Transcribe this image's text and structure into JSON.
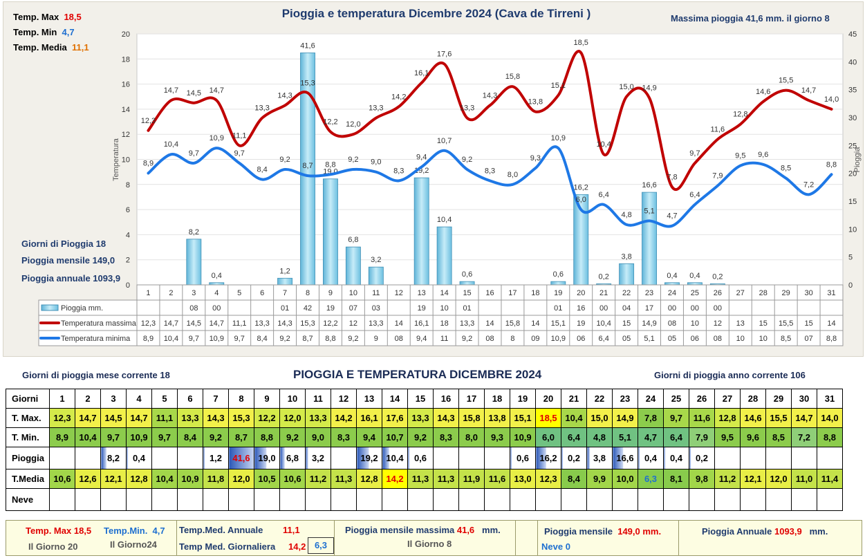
{
  "chart_data": {
    "type": "line",
    "title": "Pioggia e temperatura Dicembre 2024 (Cava de Tirreni )",
    "ylabel": "Temperatura",
    "y2label": "Pioggia",
    "ylim": [
      0,
      20
    ],
    "y2lim": [
      0,
      45
    ],
    "yticks": [
      "0",
      "2",
      "4",
      "6",
      "8",
      "10",
      "12",
      "14",
      "16",
      "18",
      "20"
    ],
    "y2ticks": [
      "0",
      "5",
      "10",
      "15",
      "20",
      "25",
      "30",
      "35",
      "40",
      "45"
    ],
    "categories": [
      "1",
      "2",
      "3",
      "4",
      "5",
      "6",
      "7",
      "8",
      "9",
      "10",
      "11",
      "12",
      "13",
      "14",
      "15",
      "16",
      "17",
      "18",
      "19",
      "20",
      "21",
      "22",
      "23",
      "24",
      "25",
      "26",
      "27",
      "28",
      "29",
      "30",
      "31"
    ],
    "series": [
      {
        "name": "Pioggia mm.",
        "type": "bar",
        "axis": "right",
        "color": "#7ccbe6",
        "values": [
          0,
          0,
          8.2,
          0.4,
          0,
          0,
          1.2,
          41.6,
          19.0,
          6.8,
          3.2,
          0,
          19.2,
          10.4,
          0.6,
          0,
          0,
          0,
          0.6,
          16.2,
          0.2,
          3.8,
          16.6,
          0.4,
          0.4,
          0.2,
          0,
          0,
          0,
          0,
          0
        ],
        "labels": [
          "",
          "",
          "8,2",
          "0,4",
          "",
          "",
          "1,2",
          "41,6",
          "19,0",
          "6,8",
          "3,2",
          "",
          "19,2",
          "10,4",
          "0,6",
          "",
          "",
          "",
          "0,6",
          "16,2",
          "0,2",
          "3,8",
          "16,6",
          "0,4",
          "0,4",
          "0,2",
          "",
          "",
          "",
          "",
          ""
        ]
      },
      {
        "name": "Temperatura massima",
        "type": "line",
        "axis": "left",
        "color": "#c00000",
        "values": [
          12.3,
          14.7,
          14.5,
          14.7,
          11.1,
          13.3,
          14.3,
          15.3,
          12.2,
          12.0,
          13.3,
          14.2,
          16.1,
          17.6,
          13.3,
          14.3,
          15.8,
          13.8,
          15.1,
          18.5,
          10.4,
          15.0,
          14.9,
          7.8,
          9.7,
          11.6,
          12.8,
          14.6,
          15.5,
          14.7,
          14.0
        ],
        "labels": [
          "12,3",
          "14,7",
          "14,5",
          "14,7",
          "11,1",
          "13,3",
          "14,3",
          "15,3",
          "12,2",
          "12,0",
          "13,3",
          "14,2",
          "16,1",
          "17,6",
          "13,3",
          "14,3",
          "15,8",
          "13,8",
          "15,1",
          "18,5",
          "10,4",
          "15,0",
          "14,9",
          "7,8",
          "9,7",
          "11,6",
          "12,8",
          "14,6",
          "15,5",
          "14,7",
          "14,0"
        ]
      },
      {
        "name": "Temperatura minima",
        "type": "line",
        "axis": "left",
        "color": "#1e78e6",
        "values": [
          8.9,
          10.4,
          9.7,
          10.9,
          9.7,
          8.4,
          9.2,
          8.7,
          8.8,
          9.2,
          9.0,
          8.3,
          9.4,
          10.7,
          9.2,
          8.3,
          8.0,
          9.3,
          10.9,
          6.0,
          6.4,
          4.8,
          5.1,
          4.7,
          6.4,
          7.9,
          9.5,
          9.6,
          8.5,
          7.2,
          8.8
        ],
        "labels": [
          "8,9",
          "10,4",
          "9,7",
          "10,9",
          "9,7",
          "8,4",
          "9,2",
          "8,7",
          "8,8",
          "9,2",
          "9,0",
          "8,3",
          "9,4",
          "10,7",
          "9,2",
          "8,3",
          "8,0",
          "9,3",
          "10,9",
          "6,0",
          "6,4",
          "4,8",
          "5,1",
          "4,7",
          "6,4",
          "7,9",
          "9,5",
          "9,6",
          "8,5",
          "7,2",
          "8,8"
        ]
      }
    ],
    "table_rows": [
      {
        "name": "Pioggia mm.",
        "cells": [
          "",
          "",
          "08",
          "00",
          "",
          "",
          "01",
          "42",
          "19",
          "07",
          "03",
          "",
          "19",
          "10",
          "01",
          "",
          "",
          "",
          "01",
          "16",
          "00",
          "04",
          "17",
          "00",
          "00",
          "00",
          "",
          "",
          "",
          "",
          ""
        ]
      },
      {
        "name": "Temperatura massima",
        "cells": [
          "12,3",
          "14,7",
          "14,5",
          "14,7",
          "11,1",
          "13,3",
          "14,3",
          "15,3",
          "12,2",
          "12",
          "13,3",
          "14",
          "16,1",
          "18",
          "13,3",
          "14",
          "15,8",
          "14",
          "15,1",
          "19",
          "10,4",
          "15",
          "14,9",
          "08",
          "10",
          "12",
          "13",
          "15",
          "15,5",
          "15",
          "14"
        ]
      },
      {
        "name": "Temperatura minima",
        "cells": [
          "8,9",
          "10,4",
          "9,7",
          "10,9",
          "9,7",
          "8,4",
          "9,2",
          "8,7",
          "8,8",
          "9,2",
          "9",
          "08",
          "9,4",
          "11",
          "9,2",
          "08",
          "8",
          "09",
          "10,9",
          "06",
          "6,4",
          "05",
          "5,1",
          "05",
          "06",
          "08",
          "10",
          "10",
          "8,5",
          "07",
          "8,8"
        ]
      }
    ],
    "stats": {
      "tmax_label": "Temp. Max",
      "tmax_value": "18,5",
      "tmin_label": "Temp. Min",
      "tmin_value": "4,7",
      "tmed_label": "Temp. Media",
      "tmed_value": "11,1",
      "max_rain": "Massima pioggia  41,6 mm. il giorno  8",
      "rain_days": "Giorni di Pioggia  18",
      "rain_month": "Pioggia mensile  149,0",
      "rain_year": "Pioggia annuale  1093,9"
    },
    "colors": {
      "tmax": "#c00000",
      "tmin": "#1e78e6",
      "rain": "#7ccbe6",
      "tmedia": "#e07000"
    }
  },
  "table": {
    "left_info": "Giorni di pioggia mese corrente   18",
    "title": "PIOGGIA E TEMPERATURA DICEMBRE 2024",
    "right_info": "Giorni di pioggia anno corrente   106",
    "row_labels": [
      "Giorni",
      "T. Max.",
      "T. Min.",
      "Pioggia",
      "T.Media",
      "Neve"
    ],
    "days": [
      "1",
      "2",
      "3",
      "4",
      "5",
      "6",
      "7",
      "8",
      "9",
      "10",
      "11",
      "12",
      "13",
      "14",
      "15",
      "16",
      "17",
      "18",
      "19",
      "20",
      "21",
      "22",
      "23",
      "24",
      "25",
      "26",
      "27",
      "28",
      "29",
      "30",
      "31"
    ],
    "tmax": [
      "12,3",
      "14,7",
      "14,5",
      "14,7",
      "11,1",
      "13,3",
      "14,3",
      "15,3",
      "12,2",
      "12,0",
      "13,3",
      "14,2",
      "16,1",
      "17,6",
      "13,3",
      "14,3",
      "15,8",
      "13,8",
      "15,1",
      "18,5",
      "10,4",
      "15,0",
      "14,9",
      "7,8",
      "9,7",
      "11,6",
      "12,8",
      "14,6",
      "15,5",
      "14,7",
      "14,0"
    ],
    "tmin": [
      "8,9",
      "10,4",
      "9,7",
      "10,9",
      "9,7",
      "8,4",
      "9,2",
      "8,7",
      "8,8",
      "9,2",
      "9,0",
      "8,3",
      "9,4",
      "10,7",
      "9,2",
      "8,3",
      "8,0",
      "9,3",
      "10,9",
      "6,0",
      "6,4",
      "4,8",
      "5,1",
      "4,7",
      "6,4",
      "7,9",
      "9,5",
      "9,6",
      "8,5",
      "7,2",
      "8,8"
    ],
    "rain": [
      "",
      "",
      "8,2",
      "0,4",
      "",
      "",
      "1,2",
      "41,6",
      "19,0",
      "6,8",
      "3,2",
      "",
      "19,2",
      "10,4",
      "0,6",
      "",
      "",
      "",
      "0,6",
      "16,2",
      "0,2",
      "3,8",
      "16,6",
      "0,4",
      "0,4",
      "0,2",
      "",
      "",
      "",
      "",
      ""
    ],
    "tmedia": [
      "10,6",
      "12,6",
      "12,1",
      "12,8",
      "10,4",
      "10,9",
      "11,8",
      "12,0",
      "10,5",
      "10,6",
      "11,2",
      "11,3",
      "12,8",
      "14,2",
      "11,3",
      "11,3",
      "11,9",
      "11,6",
      "13,0",
      "12,3",
      "8,4",
      "9,9",
      "10,0",
      "6,3",
      "8,1",
      "9,8",
      "11,2",
      "12,1",
      "12,0",
      "11,0",
      "11,4"
    ],
    "neve": [
      "",
      "",
      "",
      "",
      "",
      "",
      "",
      "",
      "",
      "",
      "",
      "",
      "",
      "",
      "",
      "",
      "",
      "",
      "",
      "",
      "",
      "",
      "",
      "",
      "",
      "",
      "",
      "",
      "",
      "",
      ""
    ]
  },
  "footer": {
    "tmax_label": "Temp. Max",
    "tmax_value": "18,5",
    "tmax_day": "Il Giorno  20",
    "tmin_label": "Temp.Min.",
    "tmin_value": "4,7",
    "tmin_day": "Il Giorno24",
    "tmed_ann_label": "Temp.Med. Annuale",
    "tmed_ann_value": "11,1",
    "tmed_gio_label": "Temp Med. Giornaliera",
    "tmed_gio_value1": "14,2",
    "tmed_gio_value2": "6,3",
    "rain_max_label": "Pioggia mensile massima",
    "rain_max_value": "41,6",
    "rain_max_unit": "mm.",
    "rain_max_day": "Il Giorno  8",
    "rain_month_label": "Pioggia mensile",
    "rain_month_value": "149,0 mm.",
    "neve": "Neve 0",
    "rain_year_label": "Pioggia Annuale",
    "rain_year_value": "1093,9",
    "rain_year_unit": "mm."
  }
}
